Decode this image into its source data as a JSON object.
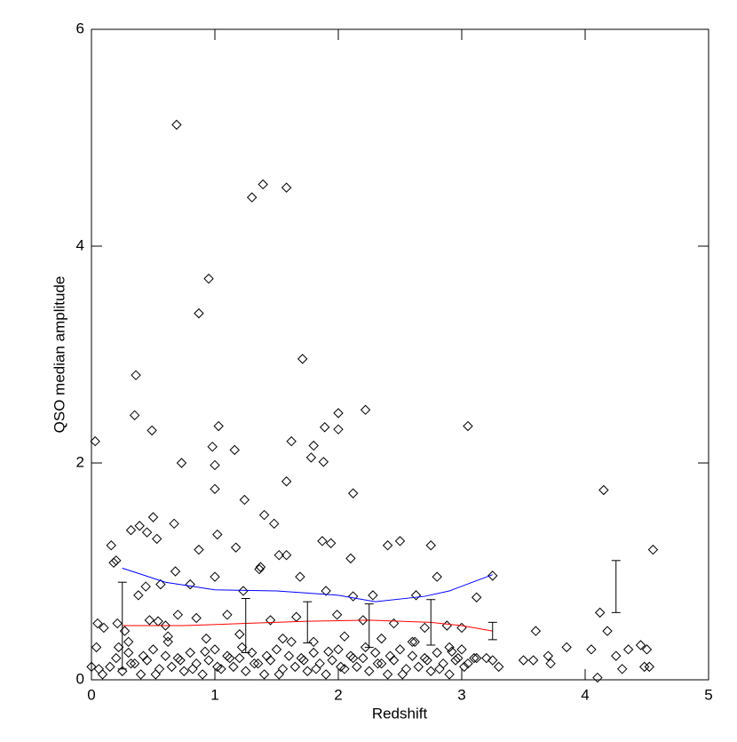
{
  "chart_data": {
    "type": "scatter",
    "xlabel": "Redshift",
    "ylabel": "QSO median amplitude",
    "xlim": [
      0,
      5
    ],
    "ylim": [
      0,
      6
    ],
    "xticks": [
      0,
      1,
      2,
      3,
      4,
      5
    ],
    "yticks": [
      0,
      2,
      4,
      6
    ],
    "series": [
      {
        "color": "#000000",
        "marker": "diamond",
        "x": [
          0.03,
          0.69,
          1.39,
          1.58,
          1.3,
          0.95,
          0.87,
          1.71,
          0.36,
          0.35,
          0.49,
          2.22,
          2.0,
          1.03,
          1.89,
          3.05,
          0.98,
          1.62,
          1.8,
          1.78,
          1.88,
          0.73,
          1.0,
          1.16,
          2.0,
          1.0,
          1.58,
          2.12,
          1.24,
          4.15,
          0.67,
          0.5,
          0.39,
          0.32,
          1.4,
          1.48,
          0.45,
          0.53,
          0.16,
          0.2,
          0.18,
          1.02,
          1.17,
          0.87,
          1.94,
          1.87,
          2.1,
          2.4,
          2.5,
          2.75,
          4.55,
          1.52,
          1.58,
          1.37,
          1.36,
          0.68,
          1.0,
          1.69,
          2.8,
          3.25,
          0.56,
          0.8,
          1.23,
          1.9,
          2.28,
          2.12,
          3.12,
          2.63,
          0.38,
          0.44,
          4.12,
          0.7,
          0.05,
          0.1,
          0.21,
          0.27,
          0.47,
          0.54,
          0.6,
          0.85,
          1.1,
          1.45,
          1.66,
          1.99,
          2.2,
          2.45,
          2.7,
          2.88,
          3.0,
          4.18,
          3.6,
          0.3,
          0.62,
          0.93,
          1.2,
          1.55,
          1.8,
          2.05,
          2.35,
          2.6,
          2.9,
          4.05,
          4.35,
          4.5,
          4.45,
          3.85,
          0.04,
          4.25,
          4.3,
          4.48,
          4.52,
          4.1,
          3.5,
          3.58,
          3.7,
          3.72,
          3.2,
          3.25,
          3.3,
          3.05,
          3.1,
          2.97,
          0.06,
          0.09,
          0.0,
          0.15,
          0.2,
          0.25,
          0.3,
          0.35,
          0.4,
          0.45,
          0.5,
          0.55,
          0.6,
          0.65,
          0.7,
          0.75,
          0.8,
          0.85,
          0.9,
          0.95,
          1.0,
          1.05,
          1.1,
          1.15,
          1.2,
          1.25,
          1.3,
          1.35,
          1.4,
          1.45,
          1.5,
          1.55,
          1.6,
          1.65,
          1.7,
          1.75,
          1.8,
          1.85,
          1.9,
          1.95,
          2.0,
          2.05,
          2.1,
          2.15,
          2.2,
          2.25,
          2.3,
          2.35,
          2.4,
          2.45,
          2.5,
          2.55,
          2.6,
          2.65,
          2.7,
          2.75,
          2.8,
          2.85,
          2.9,
          2.95,
          3.0,
          0.22,
          0.32,
          0.42,
          0.52,
          0.62,
          0.72,
          0.82,
          0.92,
          1.02,
          1.12,
          1.22,
          1.32,
          1.42,
          1.52,
          1.62,
          1.72,
          1.82,
          1.92,
          2.02,
          2.12,
          2.22,
          2.32,
          2.42,
          2.52,
          2.62,
          2.72,
          2.82,
          2.92,
          3.02,
          3.12
        ],
        "values": [
          2.2,
          5.12,
          4.57,
          4.54,
          4.45,
          3.7,
          3.38,
          2.96,
          2.81,
          2.44,
          2.3,
          2.49,
          2.46,
          2.34,
          2.33,
          2.34,
          2.15,
          2.2,
          2.16,
          2.05,
          2.01,
          2.0,
          1.98,
          2.12,
          2.31,
          1.76,
          1.83,
          1.72,
          1.66,
          1.75,
          1.44,
          1.5,
          1.42,
          1.38,
          1.52,
          1.44,
          1.36,
          1.3,
          1.24,
          1.1,
          1.08,
          1.34,
          1.22,
          1.2,
          1.26,
          1.28,
          1.12,
          1.24,
          1.28,
          1.24,
          1.2,
          1.15,
          1.15,
          1.04,
          1.02,
          1.0,
          0.95,
          0.95,
          0.95,
          0.96,
          0.88,
          0.88,
          0.82,
          0.82,
          0.78,
          0.77,
          0.76,
          0.78,
          0.78,
          0.86,
          0.62,
          0.6,
          0.52,
          0.48,
          0.52,
          0.45,
          0.55,
          0.54,
          0.5,
          0.57,
          0.6,
          0.55,
          0.58,
          0.6,
          0.55,
          0.52,
          0.48,
          0.5,
          0.48,
          0.45,
          0.45,
          0.35,
          0.4,
          0.38,
          0.42,
          0.38,
          0.35,
          0.4,
          0.38,
          0.35,
          0.3,
          0.28,
          0.28,
          0.28,
          0.32,
          0.3,
          0.3,
          0.22,
          0.1,
          0.12,
          0.12,
          0.02,
          0.18,
          0.18,
          0.22,
          0.15,
          0.2,
          0.18,
          0.12,
          0.15,
          0.2,
          0.2,
          0.1,
          0.05,
          0.12,
          0.12,
          0.2,
          0.08,
          0.25,
          0.15,
          0.05,
          0.18,
          0.28,
          0.1,
          0.22,
          0.12,
          0.2,
          0.08,
          0.25,
          0.15,
          0.05,
          0.18,
          0.28,
          0.1,
          0.22,
          0.12,
          0.2,
          0.08,
          0.25,
          0.15,
          0.05,
          0.18,
          0.28,
          0.1,
          0.22,
          0.12,
          0.2,
          0.08,
          0.25,
          0.15,
          0.05,
          0.18,
          0.28,
          0.1,
          0.22,
          0.12,
          0.2,
          0.08,
          0.25,
          0.15,
          0.05,
          0.18,
          0.28,
          0.1,
          0.22,
          0.12,
          0.2,
          0.08,
          0.25,
          0.15,
          0.05,
          0.18,
          0.28,
          0.3,
          0.15,
          0.22,
          0.05,
          0.35,
          0.18,
          0.1,
          0.26,
          0.12,
          0.2,
          0.3,
          0.15,
          0.22,
          0.05,
          0.35,
          0.18,
          0.1,
          0.26,
          0.12,
          0.2,
          0.3,
          0.15,
          0.22,
          0.05,
          0.35,
          0.18,
          0.1,
          0.26,
          0.12,
          0.2
        ]
      }
    ],
    "lines": [
      {
        "color": "#0000ff",
        "x": [
          0.25,
          0.6,
          1.0,
          1.5,
          1.75,
          2.0,
          2.3,
          2.7,
          2.9,
          3.25
        ],
        "values": [
          1.03,
          0.9,
          0.83,
          0.82,
          0.8,
          0.78,
          0.72,
          0.77,
          0.82,
          0.97
        ]
      },
      {
        "color": "#ff0000",
        "x": [
          0.25,
          0.75,
          1.25,
          1.75,
          2.25,
          2.75,
          3.0,
          3.25
        ],
        "values": [
          0.5,
          0.5,
          0.52,
          0.54,
          0.55,
          0.53,
          0.5,
          0.45
        ]
      }
    ],
    "errorbars": {
      "color": "#000000",
      "x": [
        0.25,
        1.25,
        1.75,
        2.25,
        2.75,
        3.25,
        4.25
      ],
      "values": [
        0.5,
        0.5,
        0.53,
        0.5,
        0.53,
        0.45,
        0.86
      ],
      "errors": [
        0.4,
        0.25,
        0.19,
        0.2,
        0.21,
        0.08,
        0.24
      ]
    }
  }
}
